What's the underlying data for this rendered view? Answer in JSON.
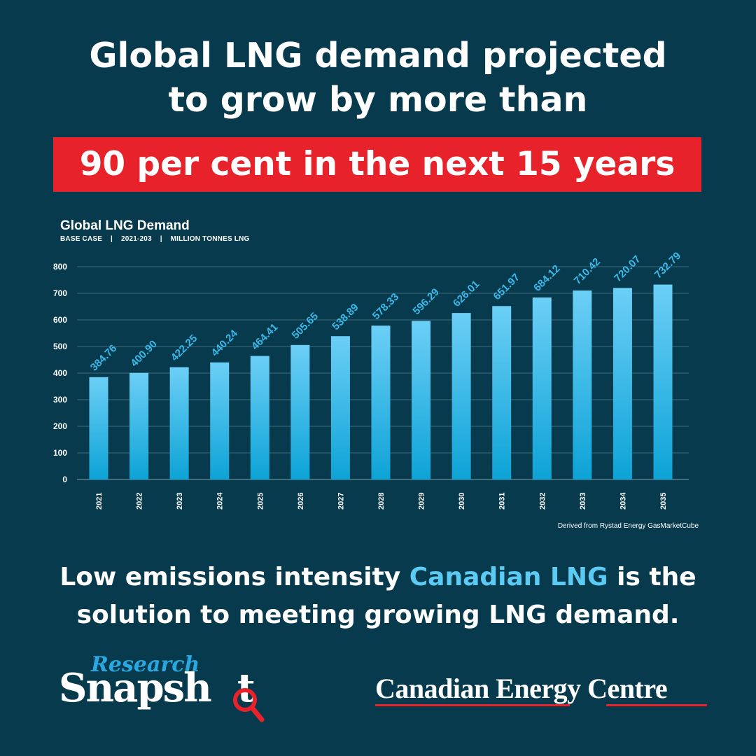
{
  "headline": {
    "line1": "Global LNG demand projected",
    "line2": "to grow by more than",
    "highlight": "90 per cent in the next 15 years"
  },
  "chart_data": {
    "type": "bar",
    "title": "Global LNG Demand",
    "subtitle": "BASE CASE    |    2021-203    |    MILLION TONNES LNG",
    "categories": [
      "2021",
      "2022",
      "2023",
      "2024",
      "2025",
      "2026",
      "2027",
      "2028",
      "2029",
      "2030",
      "2031",
      "2032",
      "2033",
      "2034",
      "2035"
    ],
    "values": [
      384.76,
      400.9,
      422.25,
      440.24,
      464.41,
      505.65,
      538.89,
      578.33,
      596.29,
      626.01,
      651.97,
      684.12,
      710.42,
      720.07,
      732.79
    ],
    "value_labels": [
      "384.76",
      "400.90",
      "422.25",
      "440.24",
      "464.41",
      "505.65",
      "538.89",
      "578.33",
      "596.29",
      "626.01",
      "651.97",
      "684.12",
      "710.42",
      "720.07",
      "732.79"
    ],
    "yticks": [
      "0",
      "100",
      "200",
      "300",
      "400",
      "500",
      "600",
      "700",
      "800"
    ],
    "ylim": [
      0,
      800
    ],
    "grid": true,
    "bar_color_top": "#6ccff6",
    "bar_color_bottom": "#0da3d6",
    "label_color": "#3bb9ea",
    "source": "Derived from Rystad Energy GasMarketCube"
  },
  "tagline": {
    "part1": "Low emissions intensity ",
    "accent": "Canadian LNG",
    "part2": " is the",
    "line2": "solution to meeting growing LNG demand."
  },
  "logos": {
    "research": "Research",
    "snapshot": "Snapsh",
    "snapshot_end": "t",
    "cec": "Canadian Energy Centre"
  },
  "colors": {
    "background": "#063a4c",
    "highlight": "#e8222b",
    "accent": "#5ccbf4"
  }
}
